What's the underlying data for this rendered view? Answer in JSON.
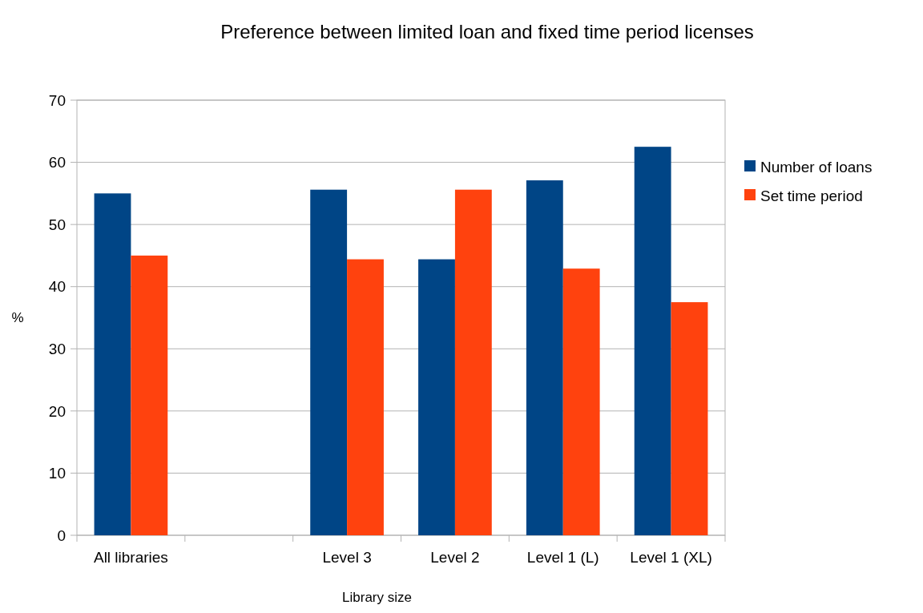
{
  "chart_data": {
    "type": "bar",
    "title": "Preference between limited loan and fixed time period licenses",
    "xlabel": "Library size",
    "ylabel": "%",
    "categories": [
      "All libraries",
      null,
      "Level 3",
      "Level 2",
      "Level 1 (L)",
      "Level 1 (XL)"
    ],
    "series": [
      {
        "name": "Number of loans",
        "color": "#004586",
        "values": [
          55,
          null,
          55.6,
          44.4,
          57.1,
          62.5
        ]
      },
      {
        "name": "Set time period",
        "color": "#ff420e",
        "values": [
          45,
          null,
          44.4,
          55.6,
          42.9,
          37.5
        ]
      }
    ],
    "ylim": [
      0,
      70
    ],
    "yticks": [
      0,
      10,
      20,
      30,
      40,
      50,
      60,
      70
    ],
    "grid": "y",
    "legend": "right"
  }
}
